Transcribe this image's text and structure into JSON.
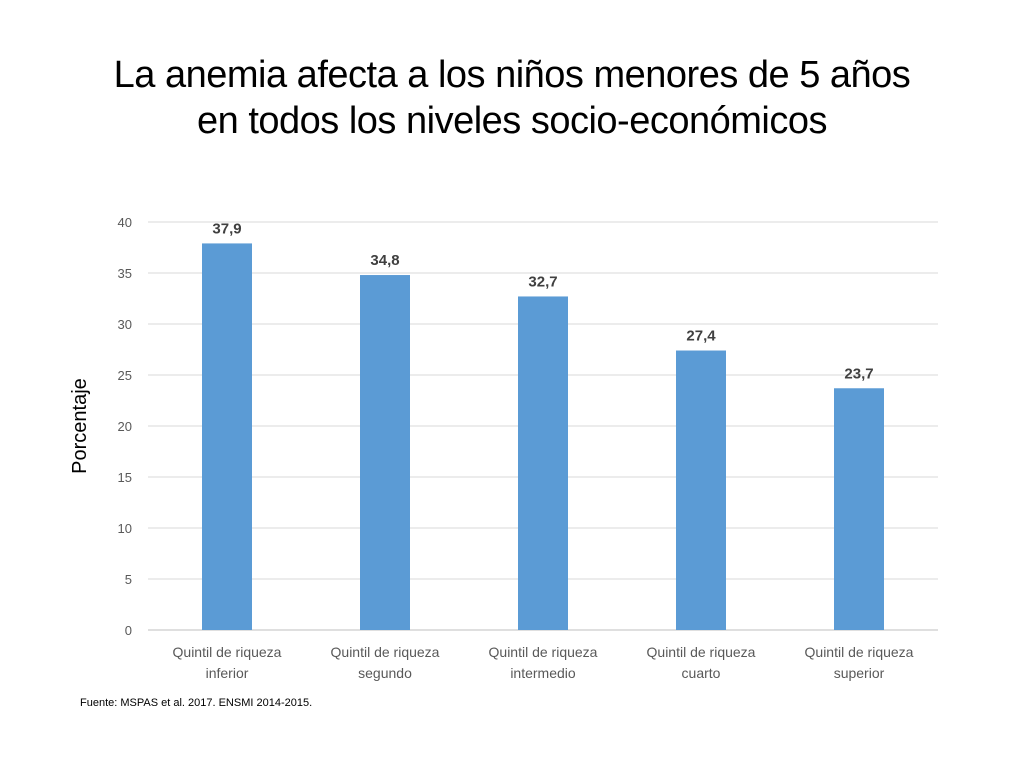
{
  "slide": {
    "title_line1": "La anemia afecta a los niños menores de 5 años",
    "title_line2": "en todos los niveles socio-económicos",
    "source": "Fuente: MSPAS et al. 2017. ENSMI 2014-2015."
  },
  "chart_data": {
    "type": "bar",
    "categories": [
      [
        "Quintil de riqueza",
        "inferior"
      ],
      [
        "Quintil de riqueza",
        "segundo"
      ],
      [
        "Quintil de riqueza",
        "intermedio"
      ],
      [
        "Quintil de riqueza",
        "cuarto"
      ],
      [
        "Quintil de riqueza",
        "superior"
      ]
    ],
    "values": [
      37.9,
      34.8,
      32.7,
      27.4,
      23.7
    ],
    "data_labels": [
      "37,9",
      "34,8",
      "32,7",
      "27,4",
      "23,7"
    ],
    "ylabel": "Porcentaje",
    "ylim": [
      0,
      40
    ],
    "yticks": [
      0,
      5,
      10,
      15,
      20,
      25,
      30,
      35,
      40
    ],
    "grid": true,
    "bar_color": "#5B9BD5"
  }
}
